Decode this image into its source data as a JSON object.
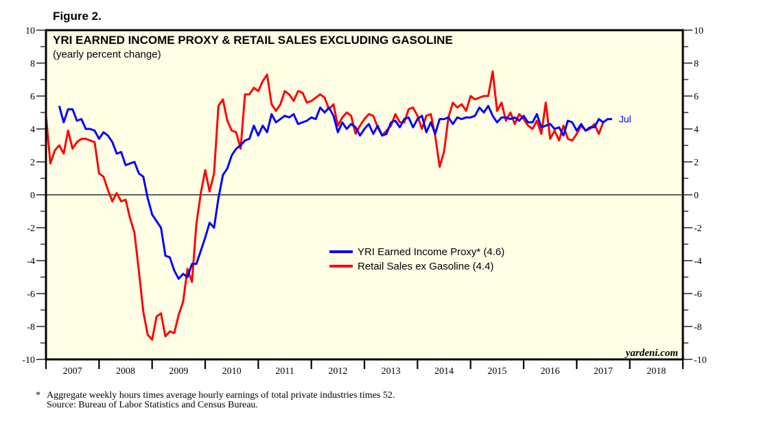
{
  "chart_data": {
    "type": "line",
    "figure_label": "Figure 2.",
    "title": "YRI EARNED INCOME PROXY & RETAIL SALES EXCLUDING GASOLINE",
    "subtitle": "(yearly percent change)",
    "xlabel": "",
    "ylabel": "",
    "ylim": [
      -10,
      10
    ],
    "yticks": [
      -10,
      -8,
      -6,
      -4,
      -2,
      0,
      2,
      4,
      6,
      8,
      10
    ],
    "ytick_labels": [
      "-10",
      "-8",
      "-6",
      "-4",
      "-2",
      "0",
      "2",
      "4",
      "6",
      "8",
      "10"
    ],
    "xlim": [
      "2007-01",
      "2018-12"
    ],
    "xtick_labels": [
      "2007",
      "2008",
      "2009",
      "2010",
      "2011",
      "2012",
      "2013",
      "2014",
      "2015",
      "2016",
      "2017",
      "2018"
    ],
    "grid": false,
    "zero_line": true,
    "legend_position": "center-right",
    "end_label": "Jul",
    "credit": "yardeni.com",
    "colors": {
      "plot_background": "#ffffe6",
      "earned_income": "#0000ff",
      "retail_sales": "#ff0000",
      "axis": "#000000"
    },
    "series": [
      {
        "name": "YRI Earned Income Proxy* (4.6)",
        "legend_label": "YRI Earned Income Proxy* (4.6)",
        "color": "#0000ff",
        "start": "2007-04",
        "frequency": "monthly",
        "values": [
          5.4,
          4.4,
          5.2,
          5.2,
          4.5,
          4.6,
          4.0,
          4.0,
          3.9,
          3.4,
          3.8,
          3.6,
          3.2,
          2.5,
          2.6,
          1.8,
          1.9,
          2.0,
          1.3,
          1.1,
          -0.2,
          -1.2,
          -1.6,
          -2.0,
          -3.7,
          -3.8,
          -4.6,
          -5.1,
          -4.8,
          -5.0,
          -4.2,
          -4.2,
          -3.4,
          -2.6,
          -1.7,
          -2.0,
          -0.2,
          1.2,
          1.6,
          2.4,
          2.8,
          3.0,
          3.3,
          3.4,
          4.2,
          3.6,
          4.2,
          3.8,
          4.9,
          4.4,
          4.6,
          4.8,
          4.7,
          4.9,
          4.3,
          4.4,
          4.5,
          4.7,
          4.6,
          5.3,
          5.0,
          5.3,
          4.8,
          3.8,
          4.4,
          4.0,
          4.3,
          4.1,
          3.6,
          4.0,
          4.3,
          3.7,
          4.2,
          3.6,
          3.7,
          4.4,
          4.5,
          4.1,
          4.6,
          4.7,
          4.1,
          4.6,
          4.8,
          3.8,
          4.4,
          3.7,
          4.6,
          4.6,
          4.7,
          4.3,
          4.7,
          4.6,
          4.7,
          4.7,
          4.8,
          5.3,
          5.0,
          5.4,
          4.8,
          4.4,
          4.7,
          4.7,
          4.6,
          4.7,
          4.5,
          4.8,
          4.4,
          4.4,
          4.9,
          4.1,
          4.2,
          4.3,
          4.0,
          4.1,
          3.6,
          4.5,
          4.4,
          3.9,
          4.3,
          3.9,
          4.1,
          4.1,
          4.6,
          4.4,
          4.6,
          4.6
        ]
      },
      {
        "name": "Retail Sales ex Gasoline (4.4)",
        "legend_label": "Retail Sales ex Gasoline (4.4)",
        "color": "#ff0000",
        "start": "2007-01",
        "frequency": "monthly",
        "values": [
          4.8,
          1.9,
          2.7,
          3.0,
          2.5,
          3.9,
          2.8,
          3.2,
          3.4,
          3.4,
          3.3,
          3.2,
          1.3,
          1.1,
          0.3,
          -0.4,
          0.1,
          -0.4,
          -0.3,
          -1.4,
          -2.3,
          -4.6,
          -7.1,
          -8.5,
          -8.8,
          -7.4,
          -7.2,
          -8.6,
          -8.3,
          -8.4,
          -7.3,
          -6.5,
          -4.5,
          -5.3,
          -1.8,
          0.1,
          1.5,
          0.2,
          1.3,
          5.4,
          5.8,
          4.5,
          3.9,
          3.8,
          2.8,
          6.1,
          6.1,
          6.5,
          6.3,
          6.9,
          7.3,
          5.5,
          5.1,
          5.5,
          6.3,
          6.1,
          5.7,
          6.3,
          6.2,
          5.6,
          5.7,
          5.9,
          6.1,
          5.9,
          5.2,
          5.5,
          4.2,
          4.7,
          5.0,
          4.8,
          3.7,
          4.2,
          4.6,
          4.9,
          4.8,
          4.1,
          3.6,
          3.9,
          4.2,
          4.9,
          4.4,
          4.4,
          5.2,
          5.3,
          4.8,
          4.0,
          4.8,
          4.9,
          3.6,
          1.7,
          2.6,
          4.7,
          5.6,
          5.3,
          5.5,
          5.1,
          6.0,
          5.8,
          5.9,
          6.0,
          6.0,
          7.5,
          5.1,
          5.6,
          4.5,
          5.0,
          4.3,
          4.9,
          4.6,
          4.2,
          4.0,
          4.5,
          3.7,
          5.6,
          3.4,
          3.9,
          3.3,
          4.2,
          3.4,
          3.3,
          3.7,
          4.2,
          3.9,
          4.0,
          4.3,
          3.7,
          4.4
        ]
      }
    ]
  },
  "footnote": {
    "marker": "*",
    "line1": "Aggregate weekly hours times average hourly earnings of total private industries times 52.",
    "line2": "Source: Bureau of Labor Statistics and Census Bureau."
  }
}
